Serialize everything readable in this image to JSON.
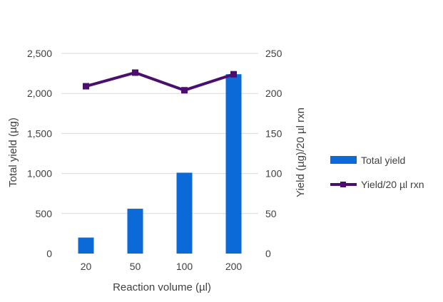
{
  "chart_data": {
    "type": "bar",
    "categories": [
      "20",
      "50",
      "100",
      "200"
    ],
    "xlabel": "Reaction volume (µl)",
    "ylabel": "Total yield (µg)",
    "y2label": "Yield (µg)/20 µl rxn",
    "ylim": [
      0,
      2500
    ],
    "y2lim": [
      0,
      250
    ],
    "yticks": [
      "0",
      "500",
      "1,000",
      "1,500",
      "2,000",
      "2,500"
    ],
    "y2ticks": [
      "0",
      "50",
      "100",
      "150",
      "200",
      "250"
    ],
    "grid": true,
    "legend_position": "right",
    "series": [
      {
        "name": "Total yield",
        "kind": "bar",
        "axis": "left",
        "color": "#0b6ad8",
        "values": [
          200,
          560,
          1010,
          2240
        ]
      },
      {
        "name": "Yield/20 µl rxn",
        "kind": "line",
        "axis": "right",
        "color": "#4a0f6e",
        "marker": "square",
        "values": [
          209,
          226,
          204,
          224
        ]
      }
    ]
  }
}
